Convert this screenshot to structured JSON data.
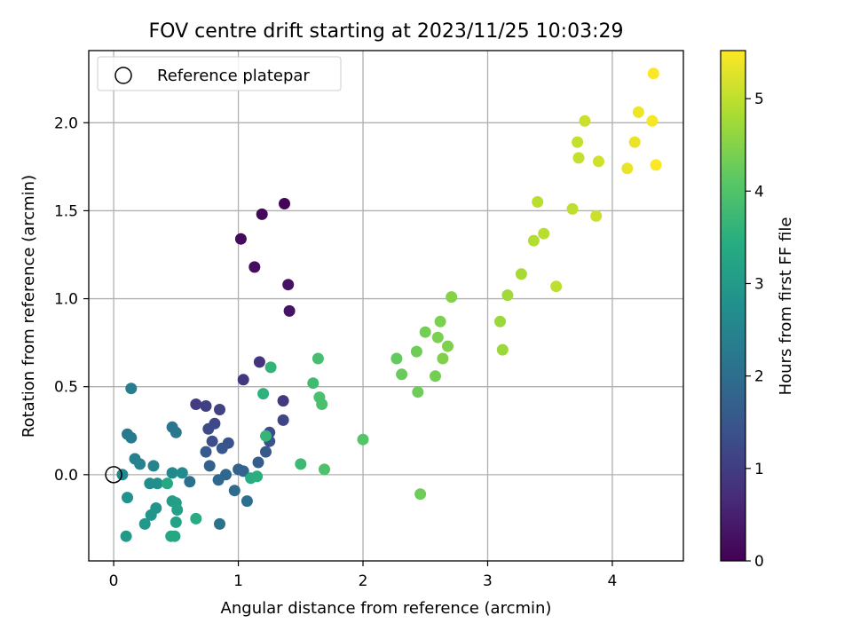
{
  "chart_data": {
    "type": "scatter",
    "title": "FOV centre drift starting at 2023/11/25 10:03:29",
    "xlabel": "Angular distance from reference (arcmin)",
    "ylabel": "Rotation from reference (arcmin)",
    "xlim": [
      -0.2,
      4.57
    ],
    "ylim": [
      -0.49,
      2.41
    ],
    "xticks": [
      0,
      1,
      2,
      3,
      4
    ],
    "yticks": [
      0.0,
      0.5,
      1.0,
      1.5,
      2.0
    ],
    "xtick_labels": [
      "0",
      "1",
      "2",
      "3",
      "4"
    ],
    "ytick_labels": [
      "0.0",
      "0.5",
      "1.0",
      "1.5",
      "2.0"
    ],
    "grid": true,
    "legend": {
      "placement": "top-left",
      "entries": [
        {
          "label": "Reference platepar",
          "marker": "hollow-circle"
        }
      ]
    },
    "reference_point": {
      "x": 0,
      "y": 0
    },
    "colorbar": {
      "label": "Hours from first FF file",
      "colormap": "viridis",
      "range": [
        0,
        5.52
      ],
      "ticks": [
        0,
        1,
        2,
        3,
        4,
        5
      ],
      "tick_labels": [
        "0",
        "1",
        "2",
        "3",
        "4",
        "5"
      ]
    },
    "series": [
      {
        "points": [
          {
            "x": 1.37,
            "y": 1.54,
            "t": 0.05
          },
          {
            "x": 1.19,
            "y": 1.48,
            "t": 0.1
          },
          {
            "x": 1.02,
            "y": 1.34,
            "t": 0.15
          },
          {
            "x": 1.13,
            "y": 1.18,
            "t": 0.2
          },
          {
            "x": 1.4,
            "y": 1.08,
            "t": 0.25
          },
          {
            "x": 1.41,
            "y": 0.93,
            "t": 0.3
          },
          {
            "x": 1.17,
            "y": 0.64,
            "t": 0.85
          },
          {
            "x": 1.04,
            "y": 0.54,
            "t": 0.9
          },
          {
            "x": 1.36,
            "y": 0.42,
            "t": 0.95
          },
          {
            "x": 0.66,
            "y": 0.4,
            "t": 1.0
          },
          {
            "x": 0.74,
            "y": 0.39,
            "t": 1.05
          },
          {
            "x": 0.85,
            "y": 0.37,
            "t": 1.1
          },
          {
            "x": 1.36,
            "y": 0.31,
            "t": 1.15
          },
          {
            "x": 0.81,
            "y": 0.29,
            "t": 1.2
          },
          {
            "x": 0.76,
            "y": 0.26,
            "t": 1.25
          },
          {
            "x": 1.25,
            "y": 0.24,
            "t": 1.3
          },
          {
            "x": 0.79,
            "y": 0.19,
            "t": 1.35
          },
          {
            "x": 1.25,
            "y": 0.19,
            "t": 1.4
          },
          {
            "x": 0.92,
            "y": 0.18,
            "t": 1.45
          },
          {
            "x": 0.87,
            "y": 0.15,
            "t": 1.5
          },
          {
            "x": 1.22,
            "y": 0.13,
            "t": 1.55
          },
          {
            "x": 0.74,
            "y": 0.13,
            "t": 1.6
          },
          {
            "x": 1.16,
            "y": 0.07,
            "t": 1.65
          },
          {
            "x": 0.77,
            "y": 0.05,
            "t": 1.7
          },
          {
            "x": 1.0,
            "y": 0.03,
            "t": 1.75
          },
          {
            "x": 1.04,
            "y": 0.02,
            "t": 1.8
          },
          {
            "x": 0.9,
            "y": 0.0,
            "t": 1.85
          },
          {
            "x": 0.84,
            "y": -0.03,
            "t": 1.9
          },
          {
            "x": 0.97,
            "y": -0.09,
            "t": 1.95
          },
          {
            "x": 1.07,
            "y": -0.15,
            "t": 2.0
          },
          {
            "x": 0.61,
            "y": -0.04,
            "t": 2.05
          },
          {
            "x": 0.85,
            "y": -0.28,
            "t": 2.1
          },
          {
            "x": 0.47,
            "y": 0.27,
            "t": 2.15
          },
          {
            "x": 0.5,
            "y": 0.24,
            "t": 2.2
          },
          {
            "x": 0.11,
            "y": 0.23,
            "t": 2.25
          },
          {
            "x": 0.14,
            "y": 0.21,
            "t": 2.3
          },
          {
            "x": 0.14,
            "y": 0.49,
            "t": 2.35
          },
          {
            "x": 0.17,
            "y": 0.09,
            "t": 2.4
          },
          {
            "x": 0.21,
            "y": 0.06,
            "t": 2.45
          },
          {
            "x": 0.32,
            "y": 0.05,
            "t": 2.5
          },
          {
            "x": 0.07,
            "y": 0.0,
            "t": 2.55
          },
          {
            "x": 0.47,
            "y": 0.01,
            "t": 2.6
          },
          {
            "x": 0.55,
            "y": 0.01,
            "t": 2.65
          },
          {
            "x": 0.29,
            "y": -0.05,
            "t": 2.7
          },
          {
            "x": 0.35,
            "y": -0.05,
            "t": 2.75
          },
          {
            "x": 0.11,
            "y": -0.13,
            "t": 2.8
          },
          {
            "x": 0.34,
            "y": -0.19,
            "t": 2.85
          },
          {
            "x": 0.3,
            "y": -0.23,
            "t": 2.9
          },
          {
            "x": 0.25,
            "y": -0.28,
            "t": 2.95
          },
          {
            "x": 0.1,
            "y": -0.35,
            "t": 3.0
          },
          {
            "x": 0.47,
            "y": -0.15,
            "t": 3.05
          },
          {
            "x": 0.5,
            "y": -0.16,
            "t": 3.1
          },
          {
            "x": 0.51,
            "y": -0.2,
            "t": 3.15
          },
          {
            "x": 0.5,
            "y": -0.27,
            "t": 3.2
          },
          {
            "x": 0.46,
            "y": -0.35,
            "t": 3.25
          },
          {
            "x": 0.49,
            "y": -0.35,
            "t": 3.3
          },
          {
            "x": 0.43,
            "y": -0.05,
            "t": 3.35
          },
          {
            "x": 0.66,
            "y": -0.25,
            "t": 3.4
          },
          {
            "x": 1.1,
            "y": -0.02,
            "t": 3.45
          },
          {
            "x": 1.15,
            "y": -0.01,
            "t": 3.5
          },
          {
            "x": 1.2,
            "y": 0.46,
            "t": 3.55
          },
          {
            "x": 1.26,
            "y": 0.61,
            "t": 3.6
          },
          {
            "x": 1.22,
            "y": 0.22,
            "t": 3.65
          },
          {
            "x": 1.5,
            "y": 0.06,
            "t": 3.75
          },
          {
            "x": 1.6,
            "y": 0.52,
            "t": 3.8
          },
          {
            "x": 1.64,
            "y": 0.66,
            "t": 3.85
          },
          {
            "x": 1.65,
            "y": 0.44,
            "t": 3.9
          },
          {
            "x": 1.67,
            "y": 0.4,
            "t": 3.92
          },
          {
            "x": 1.69,
            "y": 0.03,
            "t": 3.95
          },
          {
            "x": 2.0,
            "y": 0.2,
            "t": 4.05
          },
          {
            "x": 2.27,
            "y": 0.66,
            "t": 4.2
          },
          {
            "x": 2.31,
            "y": 0.57,
            "t": 4.25
          },
          {
            "x": 2.43,
            "y": 0.7,
            "t": 4.3
          },
          {
            "x": 2.5,
            "y": 0.81,
            "t": 4.35
          },
          {
            "x": 2.44,
            "y": 0.47,
            "t": 4.3
          },
          {
            "x": 2.46,
            "y": -0.11,
            "t": 4.3
          },
          {
            "x": 2.58,
            "y": 0.56,
            "t": 4.35
          },
          {
            "x": 2.6,
            "y": 0.78,
            "t": 4.4
          },
          {
            "x": 2.62,
            "y": 0.87,
            "t": 4.4
          },
          {
            "x": 2.64,
            "y": 0.66,
            "t": 4.45
          },
          {
            "x": 2.68,
            "y": 0.73,
            "t": 4.45
          },
          {
            "x": 2.71,
            "y": 1.01,
            "t": 4.5
          },
          {
            "x": 3.1,
            "y": 0.87,
            "t": 4.7
          },
          {
            "x": 3.12,
            "y": 0.71,
            "t": 4.7
          },
          {
            "x": 3.16,
            "y": 1.02,
            "t": 4.75
          },
          {
            "x": 3.27,
            "y": 1.14,
            "t": 4.8
          },
          {
            "x": 3.37,
            "y": 1.33,
            "t": 4.9
          },
          {
            "x": 3.4,
            "y": 1.55,
            "t": 4.95
          },
          {
            "x": 3.45,
            "y": 1.37,
            "t": 4.95
          },
          {
            "x": 3.55,
            "y": 1.07,
            "t": 5.0
          },
          {
            "x": 3.68,
            "y": 1.51,
            "t": 5.0
          },
          {
            "x": 3.72,
            "y": 1.89,
            "t": 5.05
          },
          {
            "x": 3.73,
            "y": 1.8,
            "t": 5.05
          },
          {
            "x": 3.78,
            "y": 2.01,
            "t": 5.1
          },
          {
            "x": 3.87,
            "y": 1.47,
            "t": 5.1
          },
          {
            "x": 3.89,
            "y": 1.78,
            "t": 5.15
          },
          {
            "x": 4.12,
            "y": 1.74,
            "t": 5.35
          },
          {
            "x": 4.18,
            "y": 1.89,
            "t": 5.35
          },
          {
            "x": 4.21,
            "y": 2.06,
            "t": 5.4
          },
          {
            "x": 4.32,
            "y": 2.01,
            "t": 5.45
          },
          {
            "x": 4.33,
            "y": 2.28,
            "t": 5.5
          },
          {
            "x": 4.35,
            "y": 1.76,
            "t": 5.5
          }
        ]
      }
    ]
  }
}
